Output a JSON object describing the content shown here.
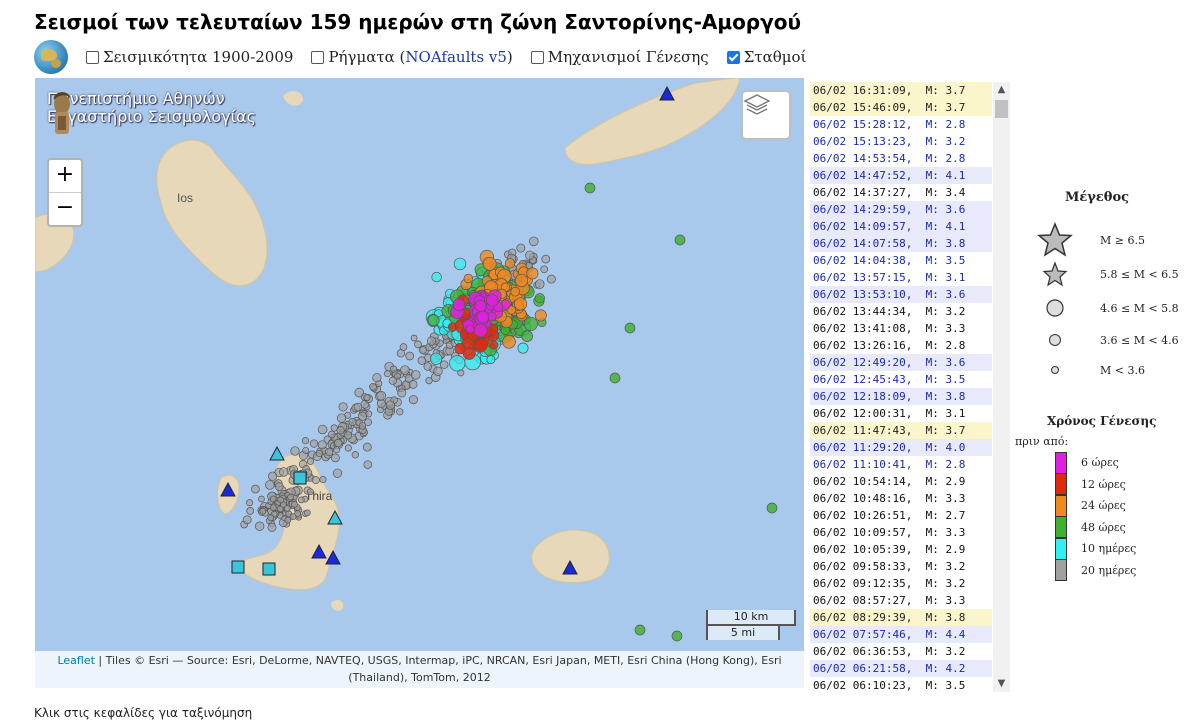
{
  "page": {
    "title": "Σεισμοί των τελευταίων 159 ημερών στη ζώνη Σαντορίνης-Αμοργού"
  },
  "toolbar": {
    "checkboxes": [
      {
        "label": "Σεισμικότητα 1900-2009",
        "checked": false
      },
      {
        "label_prefix": "Ρήγματα (",
        "label_link": "NOAfaults v5",
        "label_suffix": ")",
        "checked": false
      },
      {
        "label": "Μηχανισμοί Γένεσης",
        "checked": false
      },
      {
        "label": "Σταθμοί",
        "checked": true
      }
    ]
  },
  "map": {
    "logo_line1": "Πανεπιστήμιο Αθηνών",
    "logo_line2": "Εργαστήριο Σεισμολογίας",
    "zoom_in": "+",
    "zoom_out": "−",
    "place_ios": "Ios",
    "place_thira": "Thira",
    "scale_km": "10 km",
    "scale_mi": "5 mi",
    "attribution_link": "Leaflet",
    "attribution_text": " | Tiles © Esri — Source: Esri, DeLorme, NAVTEQ, USGS, Intermap, iPC, NRCAN, Esri Japan, METI, Esri China (Hong Kong), Esri (Thailand), TomTom, 2012",
    "colors": {
      "sea": "#a9c9ec",
      "land": "#e9dcc0"
    }
  },
  "events": [
    {
      "text": "06/02 16:31:09,  M: 3.7",
      "style": "yellow"
    },
    {
      "text": "06/02 15:46:09,  M: 3.7",
      "style": "yellow"
    },
    {
      "text": "06/02 15:28:12,  M: 2.8",
      "style": "dblue"
    },
    {
      "text": "06/02 15:13:23,  M: 3.2",
      "style": "dblue"
    },
    {
      "text": "06/02 14:53:54,  M: 2.8",
      "style": "dblue"
    },
    {
      "text": "06/02 14:47:52,  M: 4.1",
      "style": "blue"
    },
    {
      "text": "06/02 14:37:27,  M: 3.4",
      "style": "normal"
    },
    {
      "text": "06/02 14:29:59,  M: 3.6",
      "style": "blue"
    },
    {
      "text": "06/02 14:09:57,  M: 4.1",
      "style": "blue"
    },
    {
      "text": "06/02 14:07:58,  M: 3.8",
      "style": "blue"
    },
    {
      "text": "06/02 14:04:38,  M: 3.5",
      "style": "dblue"
    },
    {
      "text": "06/02 13:57:15,  M: 3.1",
      "style": "dblue"
    },
    {
      "text": "06/02 13:53:10,  M: 3.6",
      "style": "blue"
    },
    {
      "text": "06/02 13:44:34,  M: 3.2",
      "style": "normal"
    },
    {
      "text": "06/02 13:41:08,  M: 3.3",
      "style": "normal"
    },
    {
      "text": "06/02 13:26:16,  M: 2.8",
      "style": "normal"
    },
    {
      "text": "06/02 12:49:20,  M: 3.6",
      "style": "blue"
    },
    {
      "text": "06/02 12:45:43,  M: 3.5",
      "style": "dblue"
    },
    {
      "text": "06/02 12:18:09,  M: 3.8",
      "style": "blue"
    },
    {
      "text": "06/02 12:00:31,  M: 3.1",
      "style": "normal"
    },
    {
      "text": "06/02 11:47:43,  M: 3.7",
      "style": "yellow"
    },
    {
      "text": "06/02 11:29:20,  M: 4.0",
      "style": "blue"
    },
    {
      "text": "06/02 11:10:41,  M: 2.8",
      "style": "dblue"
    },
    {
      "text": "06/02 10:54:14,  M: 2.9",
      "style": "normal"
    },
    {
      "text": "06/02 10:48:16,  M: 3.3",
      "style": "normal"
    },
    {
      "text": "06/02 10:26:51,  M: 2.7",
      "style": "normal"
    },
    {
      "text": "06/02 10:09:57,  M: 3.3",
      "style": "normal"
    },
    {
      "text": "06/02 10:05:39,  M: 2.9",
      "style": "normal"
    },
    {
      "text": "06/02 09:58:33,  M: 3.2",
      "style": "normal"
    },
    {
      "text": "06/02 09:12:35,  M: 3.2",
      "style": "normal"
    },
    {
      "text": "06/02 08:57:27,  M: 3.3",
      "style": "normal"
    },
    {
      "text": "06/02 08:29:39,  M: 3.8",
      "style": "yellow"
    },
    {
      "text": "06/02 07:57:46,  M: 4.4",
      "style": "blue"
    },
    {
      "text": "06/02 06:36:53,  M: 3.2",
      "style": "normal"
    },
    {
      "text": "06/02 06:21:58,  M: 4.2",
      "style": "blue"
    },
    {
      "text": "06/02 06:10:23,  M: 3.5",
      "style": "normal"
    }
  ],
  "legend": {
    "size_title": "Μέγεθος",
    "size_items": [
      "M ≥ 6.5",
      "5.8 ≤  M < 6.5",
      "4.6 ≤  M < 5.8",
      "3.6 ≤  M < 4.6",
      "M < 3.6"
    ],
    "time_title": "Χρόνος Γένεσης",
    "time_subtitle": "πριν από:",
    "time_items": [
      {
        "label": "6 ώρες",
        "color": "#e020e0"
      },
      {
        "label": "12 ώρες",
        "color": "#e02a10"
      },
      {
        "label": "24 ώρες",
        "color": "#f08a20"
      },
      {
        "label": "48 ώρες",
        "color": "#40b030"
      },
      {
        "label": "10 ημέρες",
        "color": "#30f0f0"
      },
      {
        "label": "20 ημέρες",
        "color": "#a0a0a0"
      }
    ]
  },
  "footer": {
    "hint": "Κλικ στις κεφαλίδες για ταξινόμηση"
  }
}
